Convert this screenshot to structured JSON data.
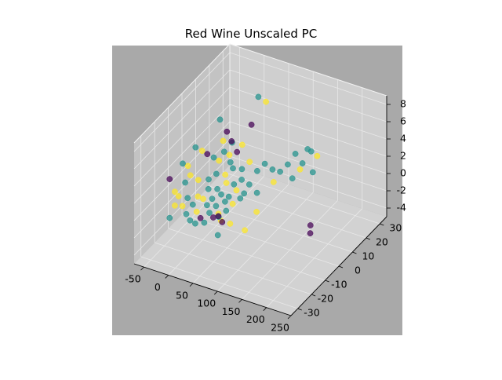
{
  "chart_data": {
    "type": "scatter",
    "projection": "3d",
    "title": "Red Wine Unscaled PC",
    "xlabel": "",
    "ylabel": "",
    "zlabel": "",
    "x_ticks": [
      -50,
      0,
      50,
      100,
      150,
      200,
      250
    ],
    "y_ticks": [
      -30,
      -20,
      -10,
      0,
      10,
      20,
      30
    ],
    "z_ticks": [
      -4,
      -2,
      0,
      2,
      4,
      6,
      8
    ],
    "xlim": [
      -70,
      250
    ],
    "ylim": [
      -35,
      35
    ],
    "zlim": [
      -5,
      9
    ],
    "grid": true,
    "background": "#a9a9a9",
    "pane_color": "#c8c8c8",
    "colormap": "viridis",
    "color_classes": [
      "#440154",
      "#21918c",
      "#fde725"
    ],
    "points": [
      {
        "x": 2,
        "y": 2,
        "z": 7.0,
        "c": 1
      },
      {
        "x": 30,
        "y": 20,
        "z": 7.2,
        "c": 1
      },
      {
        "x": 20,
        "y": 4,
        "z": 4.5,
        "c": 0
      },
      {
        "x": 30,
        "y": 15,
        "z": 4.8,
        "c": 0
      },
      {
        "x": 40,
        "y": 22,
        "z": 6.5,
        "c": 2
      },
      {
        "x": -20,
        "y": -8,
        "z": 5.0,
        "c": 1
      },
      {
        "x": -15,
        "y": -5,
        "z": 4.2,
        "c": 2
      },
      {
        "x": -10,
        "y": -3,
        "z": 3.6,
        "c": 0
      },
      {
        "x": -5,
        "y": 0,
        "z": 2.8,
        "c": 1
      },
      {
        "x": 0,
        "y": 2,
        "z": 2.2,
        "c": 2
      },
      {
        "x": 5,
        "y": 4,
        "z": 3.0,
        "c": 1
      },
      {
        "x": 10,
        "y": 6,
        "z": 2.4,
        "c": 2
      },
      {
        "x": 15,
        "y": 5,
        "z": 1.8,
        "c": 1
      },
      {
        "x": 20,
        "y": 8,
        "z": 2.6,
        "c": 0
      },
      {
        "x": -25,
        "y": -10,
        "z": 2.0,
        "c": 2
      },
      {
        "x": -30,
        "y": -12,
        "z": 1.4,
        "c": 1
      },
      {
        "x": -20,
        "y": -6,
        "z": 0.9,
        "c": 2
      },
      {
        "x": -10,
        "y": -2,
        "z": 0.5,
        "c": 1
      },
      {
        "x": 0,
        "y": 0,
        "z": 1.0,
        "c": 1
      },
      {
        "x": 10,
        "y": 3,
        "z": 0.6,
        "c": 2
      },
      {
        "x": 20,
        "y": 5,
        "z": 1.2,
        "c": 1
      },
      {
        "x": 30,
        "y": 8,
        "z": 0.8,
        "c": 1
      },
      {
        "x": 40,
        "y": 10,
        "z": 1.5,
        "c": 2
      },
      {
        "x": 50,
        "y": 12,
        "z": 0.3,
        "c": 1
      },
      {
        "x": -35,
        "y": -15,
        "z": 0.2,
        "c": 2
      },
      {
        "x": -25,
        "y": -12,
        "z": -0.3,
        "c": 1
      },
      {
        "x": -15,
        "y": -8,
        "z": -0.6,
        "c": 2
      },
      {
        "x": -5,
        "y": -4,
        "z": -0.2,
        "c": 1
      },
      {
        "x": 5,
        "y": -1,
        "z": -0.5,
        "c": 1
      },
      {
        "x": 15,
        "y": 2,
        "z": -0.1,
        "c": 2
      },
      {
        "x": 25,
        "y": 4,
        "z": -0.4,
        "c": 1
      },
      {
        "x": 35,
        "y": 6,
        "z": 0.0,
        "c": 1
      },
      {
        "x": 45,
        "y": 8,
        "z": -0.7,
        "c": 1
      },
      {
        "x": -30,
        "y": -14,
        "z": -1.0,
        "c": 2
      },
      {
        "x": -20,
        "y": -10,
        "z": -1.3,
        "c": 1
      },
      {
        "x": -10,
        "y": -6,
        "z": -1.1,
        "c": 2
      },
      {
        "x": 0,
        "y": -3,
        "z": -1.4,
        "c": 1
      },
      {
        "x": 10,
        "y": 0,
        "z": -1.2,
        "c": 1
      },
      {
        "x": 20,
        "y": 2,
        "z": -1.6,
        "c": 1
      },
      {
        "x": 30,
        "y": 4,
        "z": -1.0,
        "c": 2
      },
      {
        "x": 40,
        "y": 6,
        "z": -1.5,
        "c": 1
      },
      {
        "x": -25,
        "y": -13,
        "z": -2.0,
        "c": 1
      },
      {
        "x": -15,
        "y": -9,
        "z": -2.2,
        "c": 2
      },
      {
        "x": -5,
        "y": -5,
        "z": -1.9,
        "c": 1
      },
      {
        "x": 5,
        "y": -2,
        "z": -2.3,
        "c": 1
      },
      {
        "x": 15,
        "y": 1,
        "z": -2.1,
        "c": 1
      },
      {
        "x": 25,
        "y": 3,
        "z": -2.5,
        "c": 2
      },
      {
        "x": 35,
        "y": 5,
        "z": -2.0,
        "c": 1
      },
      {
        "x": -20,
        "y": -12,
        "z": -2.8,
        "c": 1
      },
      {
        "x": -10,
        "y": -8,
        "z": -3.0,
        "c": 0
      },
      {
        "x": 0,
        "y": -5,
        "z": -2.7,
        "c": 1
      },
      {
        "x": 10,
        "y": -2,
        "z": -3.1,
        "c": 2
      },
      {
        "x": 20,
        "y": 0,
        "z": -2.9,
        "c": 1
      },
      {
        "x": -15,
        "y": -10,
        "z": -3.4,
        "c": 1
      },
      {
        "x": -5,
        "y": -7,
        "z": -3.6,
        "c": 1
      },
      {
        "x": 5,
        "y": -4,
        "z": -3.3,
        "c": 0
      },
      {
        "x": 15,
        "y": -2,
        "z": -3.8,
        "c": 2
      },
      {
        "x": -40,
        "y": -16,
        "z": 0.8,
        "c": 2
      },
      {
        "x": -40,
        "y": -16,
        "z": -0.8,
        "c": 2
      },
      {
        "x": -45,
        "y": -18,
        "z": 2.5,
        "c": 0
      },
      {
        "x": -45,
        "y": -18,
        "z": -2.0,
        "c": 1
      },
      {
        "x": 60,
        "y": 14,
        "z": 1.0,
        "c": 1
      },
      {
        "x": 70,
        "y": 16,
        "z": 0.2,
        "c": 1
      },
      {
        "x": 80,
        "y": 18,
        "z": -0.2,
        "c": 1
      },
      {
        "x": 90,
        "y": 20,
        "z": 0.5,
        "c": 1
      },
      {
        "x": 75,
        "y": 15,
        "z": -1.0,
        "c": 2
      },
      {
        "x": 55,
        "y": 10,
        "z": -1.8,
        "c": 1
      },
      {
        "x": 100,
        "y": 22,
        "z": 1.6,
        "c": 1
      },
      {
        "x": 120,
        "y": 20,
        "z": 1.2,
        "c": 1
      },
      {
        "x": 125,
        "y": 22,
        "z": 2.6,
        "c": 1
      },
      {
        "x": 135,
        "y": 21,
        "z": 2.7,
        "c": 1
      },
      {
        "x": 150,
        "y": 20,
        "z": 2.6,
        "c": 2
      },
      {
        "x": 105,
        "y": 18,
        "z": -0.5,
        "c": 1
      },
      {
        "x": 115,
        "y": 20,
        "z": 0.4,
        "c": 2
      },
      {
        "x": 130,
        "y": 24,
        "z": -0.3,
        "c": 1
      },
      {
        "x": 60,
        "y": -20,
        "z": 0.5,
        "c": 0
      },
      {
        "x": 55,
        "y": -18,
        "z": 0.0,
        "c": 1
      },
      {
        "x": 40,
        "y": -10,
        "z": -2.2,
        "c": 0
      },
      {
        "x": 45,
        "y": -15,
        "z": -2.8,
        "c": 1
      },
      {
        "x": 70,
        "y": -15,
        "z": -1.0,
        "c": 2
      },
      {
        "x": 110,
        "y": -10,
        "z": 0.3,
        "c": 2
      },
      {
        "x": 100,
        "y": -15,
        "z": -1.2,
        "c": 2
      },
      {
        "x": 220,
        "y": -10,
        "z": 0.8,
        "c": 0
      },
      {
        "x": 225,
        "y": -12,
        "z": 0.3,
        "c": 0
      },
      {
        "x": -30,
        "y": -10,
        "z": 3.0,
        "c": 2
      },
      {
        "x": -35,
        "y": -12,
        "z": 3.5,
        "c": 1
      },
      {
        "x": 5,
        "y": 6,
        "z": 5.0,
        "c": 0
      },
      {
        "x": 0,
        "y": 5,
        "z": 4.0,
        "c": 2
      },
      {
        "x": 10,
        "y": 8,
        "z": 3.5,
        "c": 1
      },
      {
        "x": 25,
        "y": 10,
        "z": 3.2,
        "c": 2
      }
    ]
  }
}
